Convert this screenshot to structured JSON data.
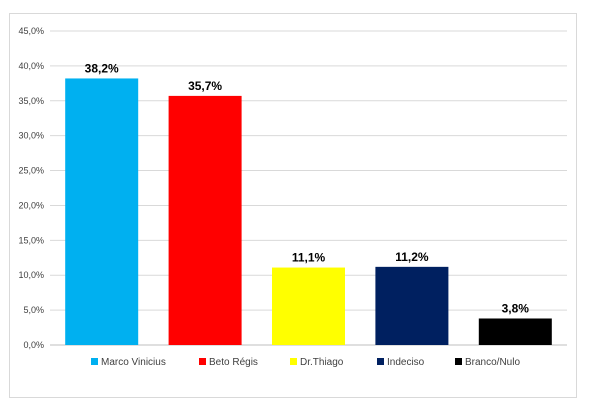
{
  "chart_data": {
    "type": "bar",
    "categories": [
      "Marco Vinicius",
      "Beto Régis",
      "Dr.Thiago",
      "Indeciso",
      "Branco/Nulo"
    ],
    "values": [
      38.2,
      35.7,
      11.1,
      11.2,
      3.8
    ],
    "data_labels": [
      "38,2%",
      "35,7%",
      "11,1%",
      "11,2%",
      "3,8%"
    ],
    "colors": [
      "#00b0f0",
      "#ff0000",
      "#ffff00",
      "#002060",
      "#000000"
    ],
    "ylim": [
      0,
      45
    ],
    "y_ticks": [
      0,
      5,
      10,
      15,
      20,
      25,
      30,
      35,
      40,
      45
    ],
    "y_tick_labels": [
      "0,0%",
      "5,0%",
      "10,0%",
      "15,0%",
      "20,0%",
      "25,0%",
      "30,0%",
      "35,0%",
      "40,0%",
      "45,0%"
    ],
    "grid": true,
    "legend_position": "bottom",
    "title": "",
    "xlabel": "",
    "ylabel": ""
  }
}
